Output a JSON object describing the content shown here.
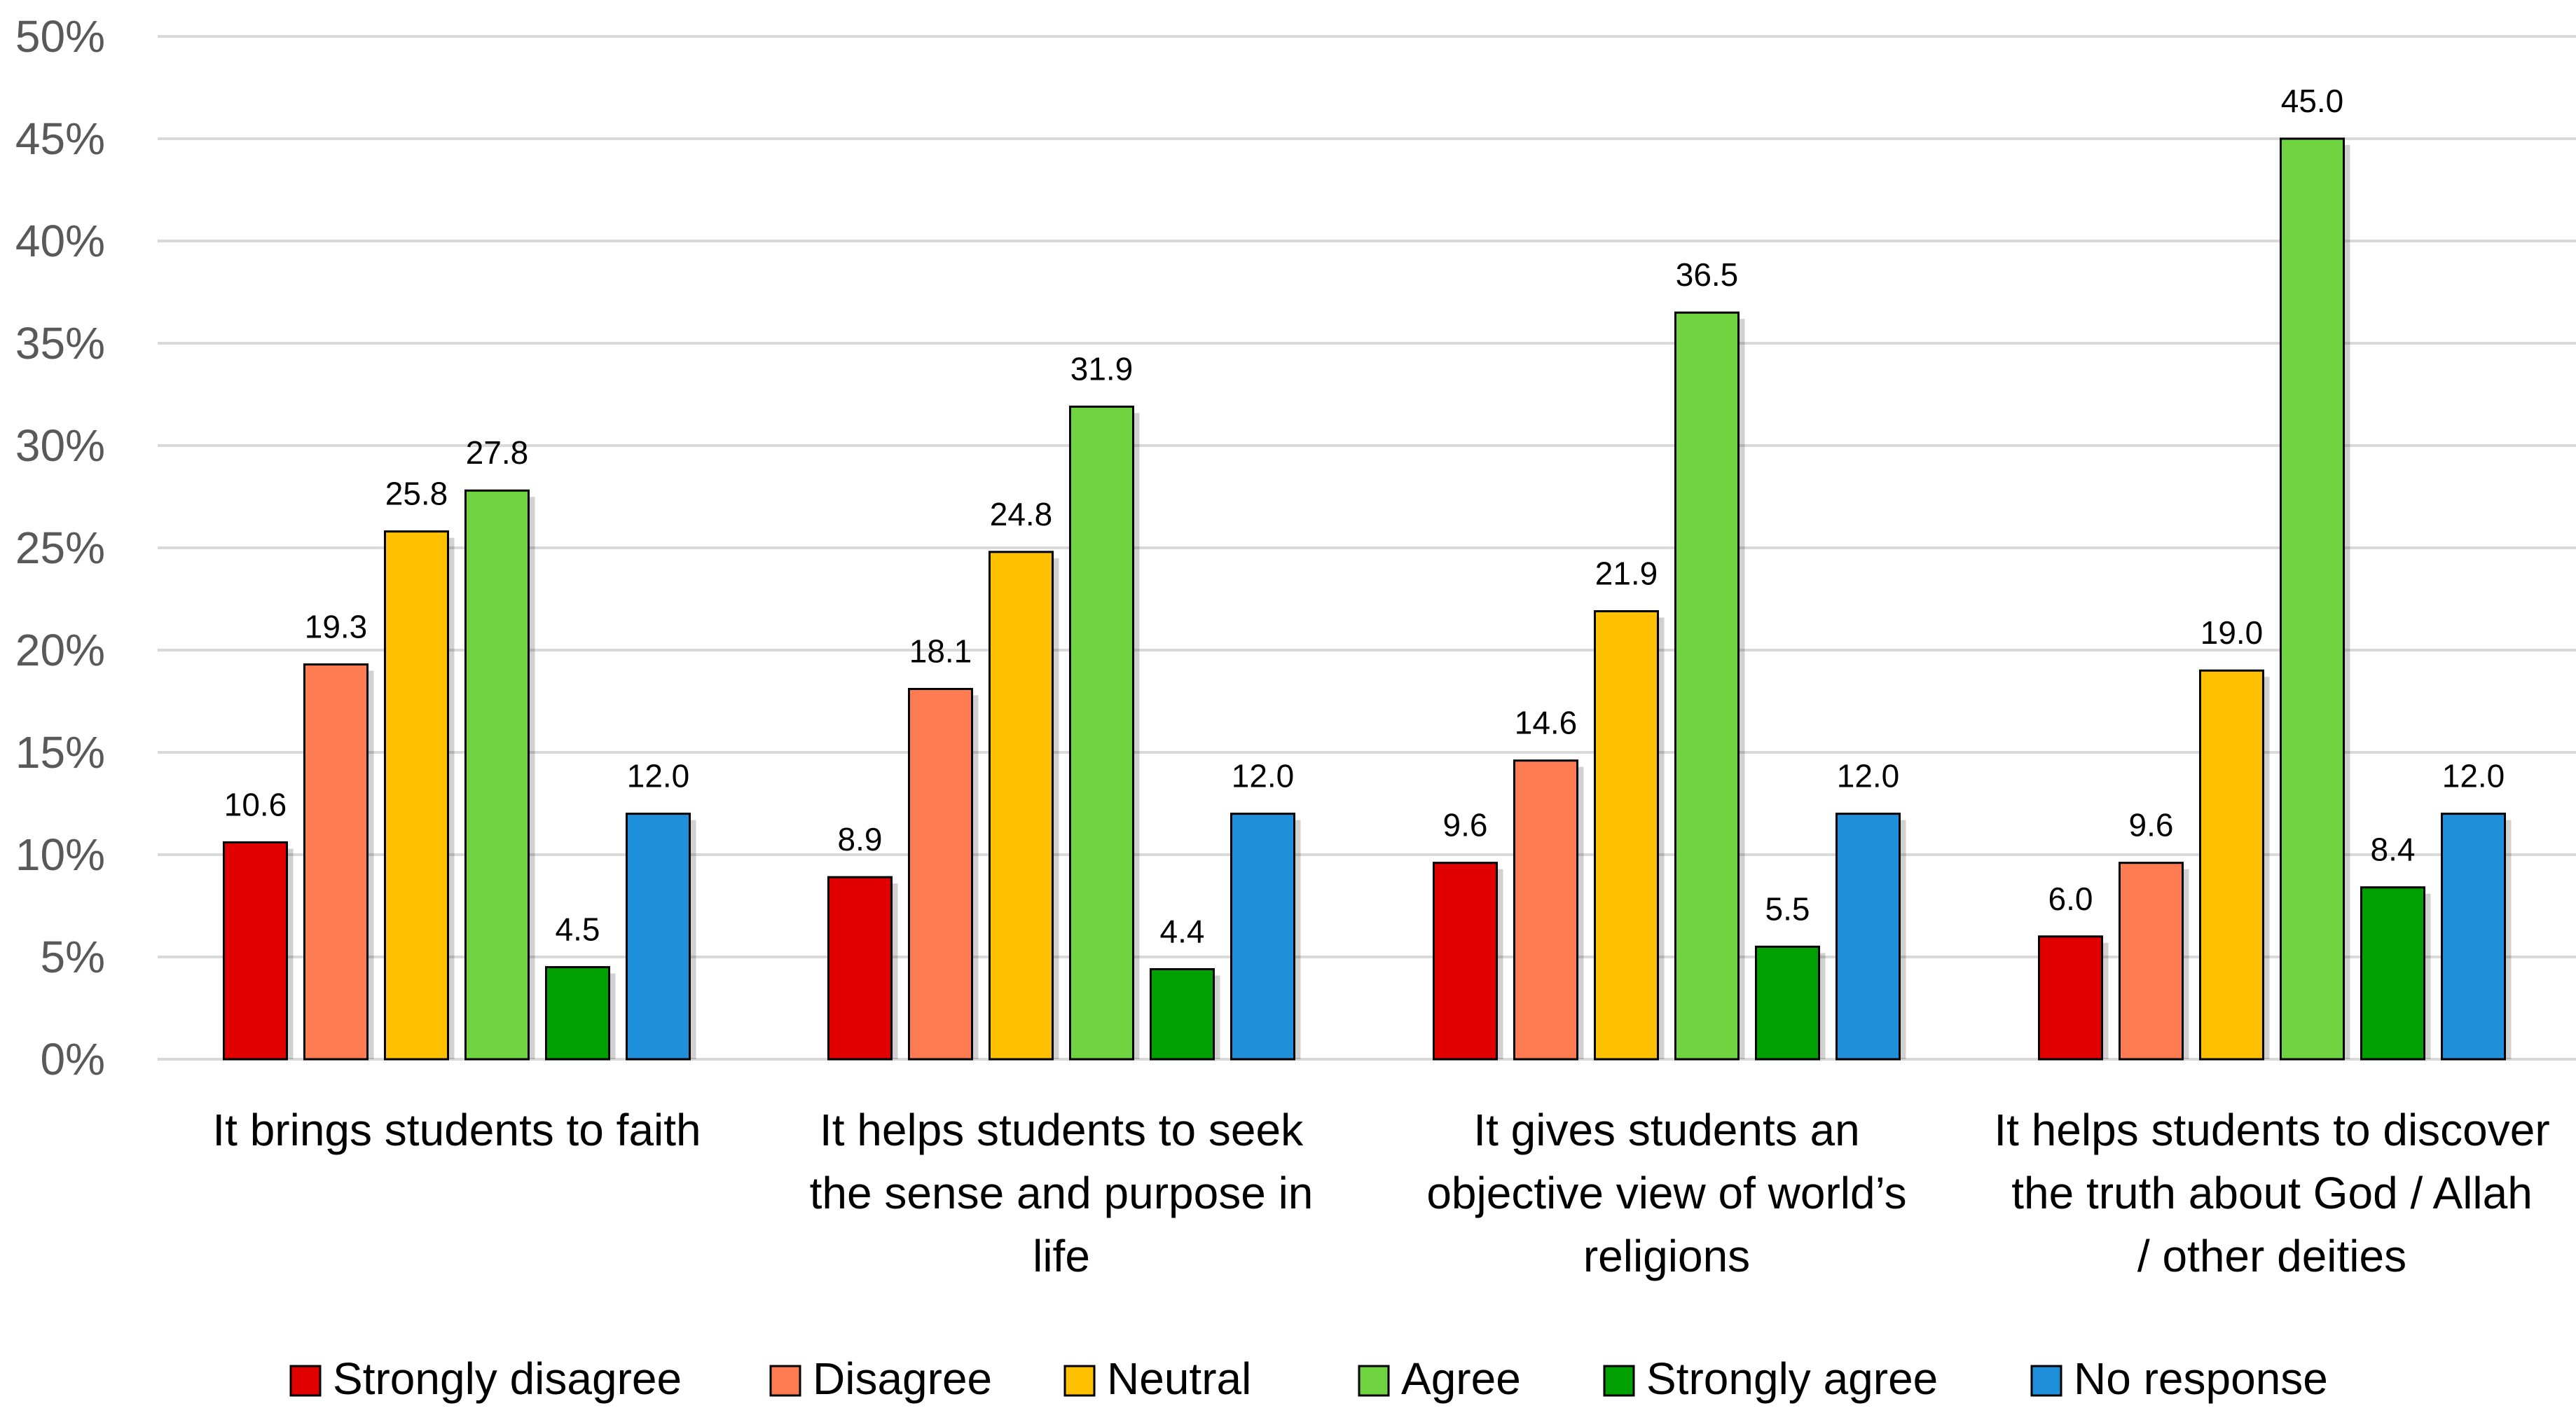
{
  "chart_data": {
    "type": "bar",
    "categories": [
      [
        "It brings students to faith"
      ],
      [
        "It helps students to seek",
        "the sense and purpose in",
        "life"
      ],
      [
        "It gives students an",
        "objective view of world’s",
        "religions"
      ],
      [
        "It helps students to discover",
        "the truth about God / Allah",
        "/ other deities"
      ]
    ],
    "series": [
      {
        "name": "Strongly disagree",
        "color": "#E00000",
        "values": [
          10.6,
          8.9,
          9.6,
          6.0
        ]
      },
      {
        "name": "Disagree",
        "color": "#FF7B52",
        "values": [
          19.3,
          18.1,
          14.6,
          9.6
        ]
      },
      {
        "name": "Neutral",
        "color": "#FFC000",
        "values": [
          25.8,
          24.8,
          21.9,
          19.0
        ]
      },
      {
        "name": "Agree",
        "color": "#6FD440",
        "values": [
          27.8,
          31.9,
          36.5,
          45.0
        ]
      },
      {
        "name": "Strongly agree",
        "color": "#00A000",
        "values": [
          4.5,
          4.4,
          5.5,
          8.4
        ]
      },
      {
        "name": "No response",
        "color": "#1F8FDB",
        "values": [
          12.0,
          12.0,
          12.0,
          12.0
        ]
      }
    ],
    "y_ticks": [
      "0%",
      "5%",
      "10%",
      "15%",
      "20%",
      "25%",
      "30%",
      "35%",
      "40%",
      "45%",
      "50%"
    ],
    "ylim": [
      0,
      50
    ],
    "grid": true,
    "legend_position": "bottom"
  }
}
